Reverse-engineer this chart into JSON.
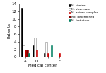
{
  "centers": [
    "A",
    "D",
    "C",
    "F"
  ],
  "series": {
    "M. simiae": [
      13,
      3,
      1,
      0
    ],
    "M. abscessus": [
      3,
      5,
      4,
      0
    ],
    "M. avium complex": [
      2,
      2,
      1,
      1
    ],
    "Not determined": [
      2,
      0,
      0,
      0
    ],
    "M. fortuitum": [
      1,
      0,
      3,
      0
    ]
  },
  "colors": {
    "M. simiae": "#000000",
    "M. abscessus": "#ffffff",
    "M. avium complex": "#cc0000",
    "Not determined": "#8b0000",
    "M. fortuitum": "#008060"
  },
  "edge_colors": {
    "M. simiae": "#000000",
    "M. abscessus": "#888888",
    "M. avium complex": "#cc0000",
    "Not determined": "#8b0000",
    "M. fortuitum": "#008060"
  },
  "ylabel": "Patients",
  "xlabel": "Medical center",
  "ylim": [
    0,
    14
  ],
  "yticks": [
    0,
    2,
    4,
    6,
    8,
    10,
    12,
    14
  ]
}
